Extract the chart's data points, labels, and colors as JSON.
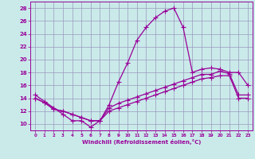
{
  "xlabel": "Windchill (Refroidissement éolien,°C)",
  "xlim": [
    -0.5,
    23.5
  ],
  "ylim": [
    9,
    29
  ],
  "yticks": [
    10,
    12,
    14,
    16,
    18,
    20,
    22,
    24,
    26,
    28
  ],
  "xticks": [
    0,
    1,
    2,
    3,
    4,
    5,
    6,
    7,
    8,
    9,
    10,
    11,
    12,
    13,
    14,
    15,
    16,
    17,
    18,
    19,
    20,
    21,
    22,
    23
  ],
  "bg_color": "#caeaea",
  "grid_color": "#9999bb",
  "line_color": "#990099",
  "line_width": 0.9,
  "marker": "+",
  "marker_size": 4,
  "series": [
    {
      "x": [
        0,
        1,
        2,
        3,
        4,
        5,
        6,
        7,
        8,
        9,
        10,
        11,
        12,
        13,
        14,
        15,
        16,
        17,
        18,
        19,
        20,
        21,
        22,
        23
      ],
      "y": [
        14.5,
        13.5,
        12.5,
        11.5,
        10.5,
        10.5,
        9.5,
        10.5,
        13.0,
        16.5,
        19.5,
        23.0,
        25.0,
        26.5,
        27.5,
        28.0,
        25.0,
        18.0,
        18.5,
        18.7,
        18.5,
        18.0,
        18.0,
        16.0
      ]
    },
    {
      "x": [
        0,
        1,
        2,
        3,
        4,
        5,
        6,
        7,
        8,
        9,
        10,
        11,
        12,
        13,
        14,
        15,
        16,
        17,
        18,
        19,
        20,
        21,
        22,
        23
      ],
      "y": [
        14.0,
        13.3,
        12.3,
        12.0,
        11.5,
        11.0,
        10.5,
        10.5,
        12.5,
        13.2,
        13.7,
        14.2,
        14.7,
        15.2,
        15.7,
        16.2,
        16.7,
        17.2,
        17.7,
        17.7,
        18.2,
        17.8,
        14.5,
        14.5
      ]
    },
    {
      "x": [
        0,
        1,
        2,
        3,
        4,
        5,
        6,
        7,
        8,
        9,
        10,
        11,
        12,
        13,
        14,
        15,
        16,
        17,
        18,
        19,
        20,
        21,
        22,
        23
      ],
      "y": [
        14.0,
        13.3,
        12.3,
        12.0,
        11.5,
        11.0,
        10.5,
        10.5,
        12.0,
        12.5,
        13.0,
        13.5,
        14.0,
        14.5,
        15.0,
        15.5,
        16.0,
        16.5,
        17.0,
        17.2,
        17.5,
        17.5,
        14.0,
        14.0
      ]
    }
  ]
}
